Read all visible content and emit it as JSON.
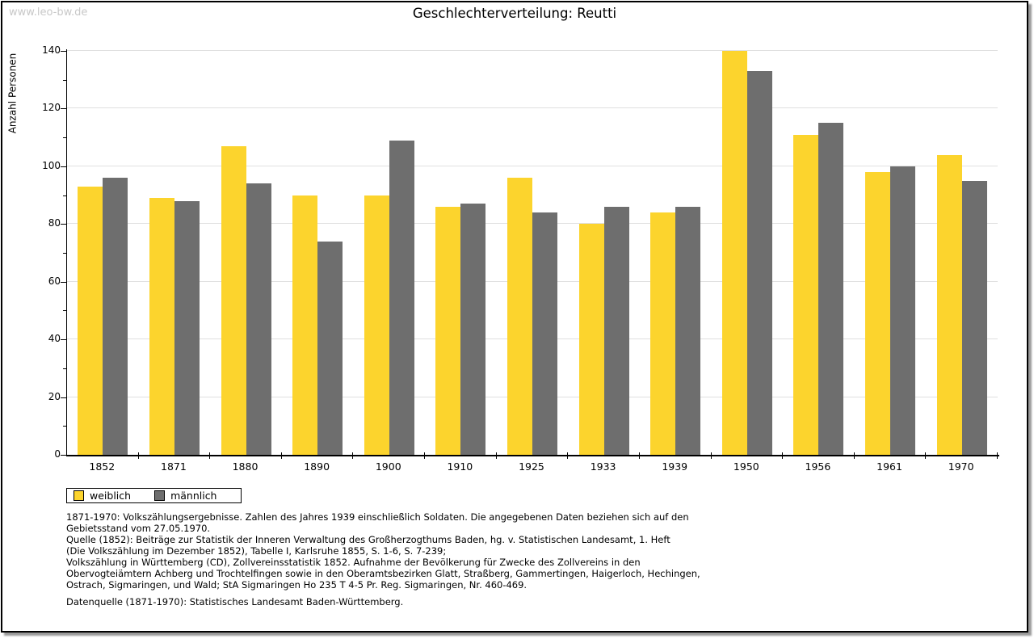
{
  "watermark": "www.leo-bw.de",
  "title": "Geschlechterverteilung: Reutti",
  "colors": {
    "female": "#fcd42d",
    "male": "#6e6e6e",
    "gridline": "#e0e0e0",
    "watermark": "#c8c8c8",
    "axis": "#000000"
  },
  "chart_data": {
    "type": "bar",
    "title": "Geschlechterverteilung: Reutti",
    "xlabel": "",
    "ylabel": "Anzahl Personen",
    "ylim": [
      0,
      140
    ],
    "yticks": [
      0,
      20,
      40,
      60,
      80,
      100,
      120,
      140
    ],
    "ytick_minor_step": 10,
    "grid": true,
    "legend_position": "bottom-left",
    "categories": [
      "1852",
      "1871",
      "1880",
      "1890",
      "1900",
      "1910",
      "1925",
      "1933",
      "1939",
      "1950",
      "1956",
      "1961",
      "1970"
    ],
    "series": [
      {
        "name": "weiblich",
        "color": "#fcd42d",
        "values": [
          93,
          89,
          107,
          90,
          90,
          86,
          96,
          80,
          84,
          140,
          111,
          98,
          104
        ]
      },
      {
        "name": "männlich",
        "color": "#6e6e6e",
        "values": [
          96,
          88,
          94,
          74,
          109,
          87,
          84,
          86,
          86,
          133,
          115,
          100,
          95
        ]
      }
    ]
  },
  "footer": {
    "lines": [
      "1871-1970: Volkszählungsergebnisse. Zahlen des Jahres 1939 einschließlich Soldaten. Die angegebenen Daten beziehen sich auf den",
      "Gebietsstand vom 27.05.1970.",
      "Quelle (1852): Beiträge zur Statistik der Inneren Verwaltung des Großherzogthums Baden, hg. v. Statistischen Landesamt, 1. Heft",
      "(Die Volkszählung im Dezember 1852), Tabelle I, Karlsruhe 1855, S. 1-6, S. 7-239;",
      "Volkszählung in Württemberg (CD), Zollvereinsstatistik 1852. Aufnahme der Bevölkerung für Zwecke des Zollvereins in den",
      "Obervogteiämtern Achberg und Trochtelfingen sowie in den Oberamtsbezirken Glatt, Straßberg, Gammertingen, Haigerloch, Hechingen,",
      "Ostrach, Sigmaringen, und Wald; StA Sigmaringen Ho 235 T 4-5 Pr. Reg. Sigmaringen, Nr. 460-469."
    ],
    "datasource": "Datenquelle (1871-1970): Statistisches Landesamt Baden-Württemberg."
  }
}
